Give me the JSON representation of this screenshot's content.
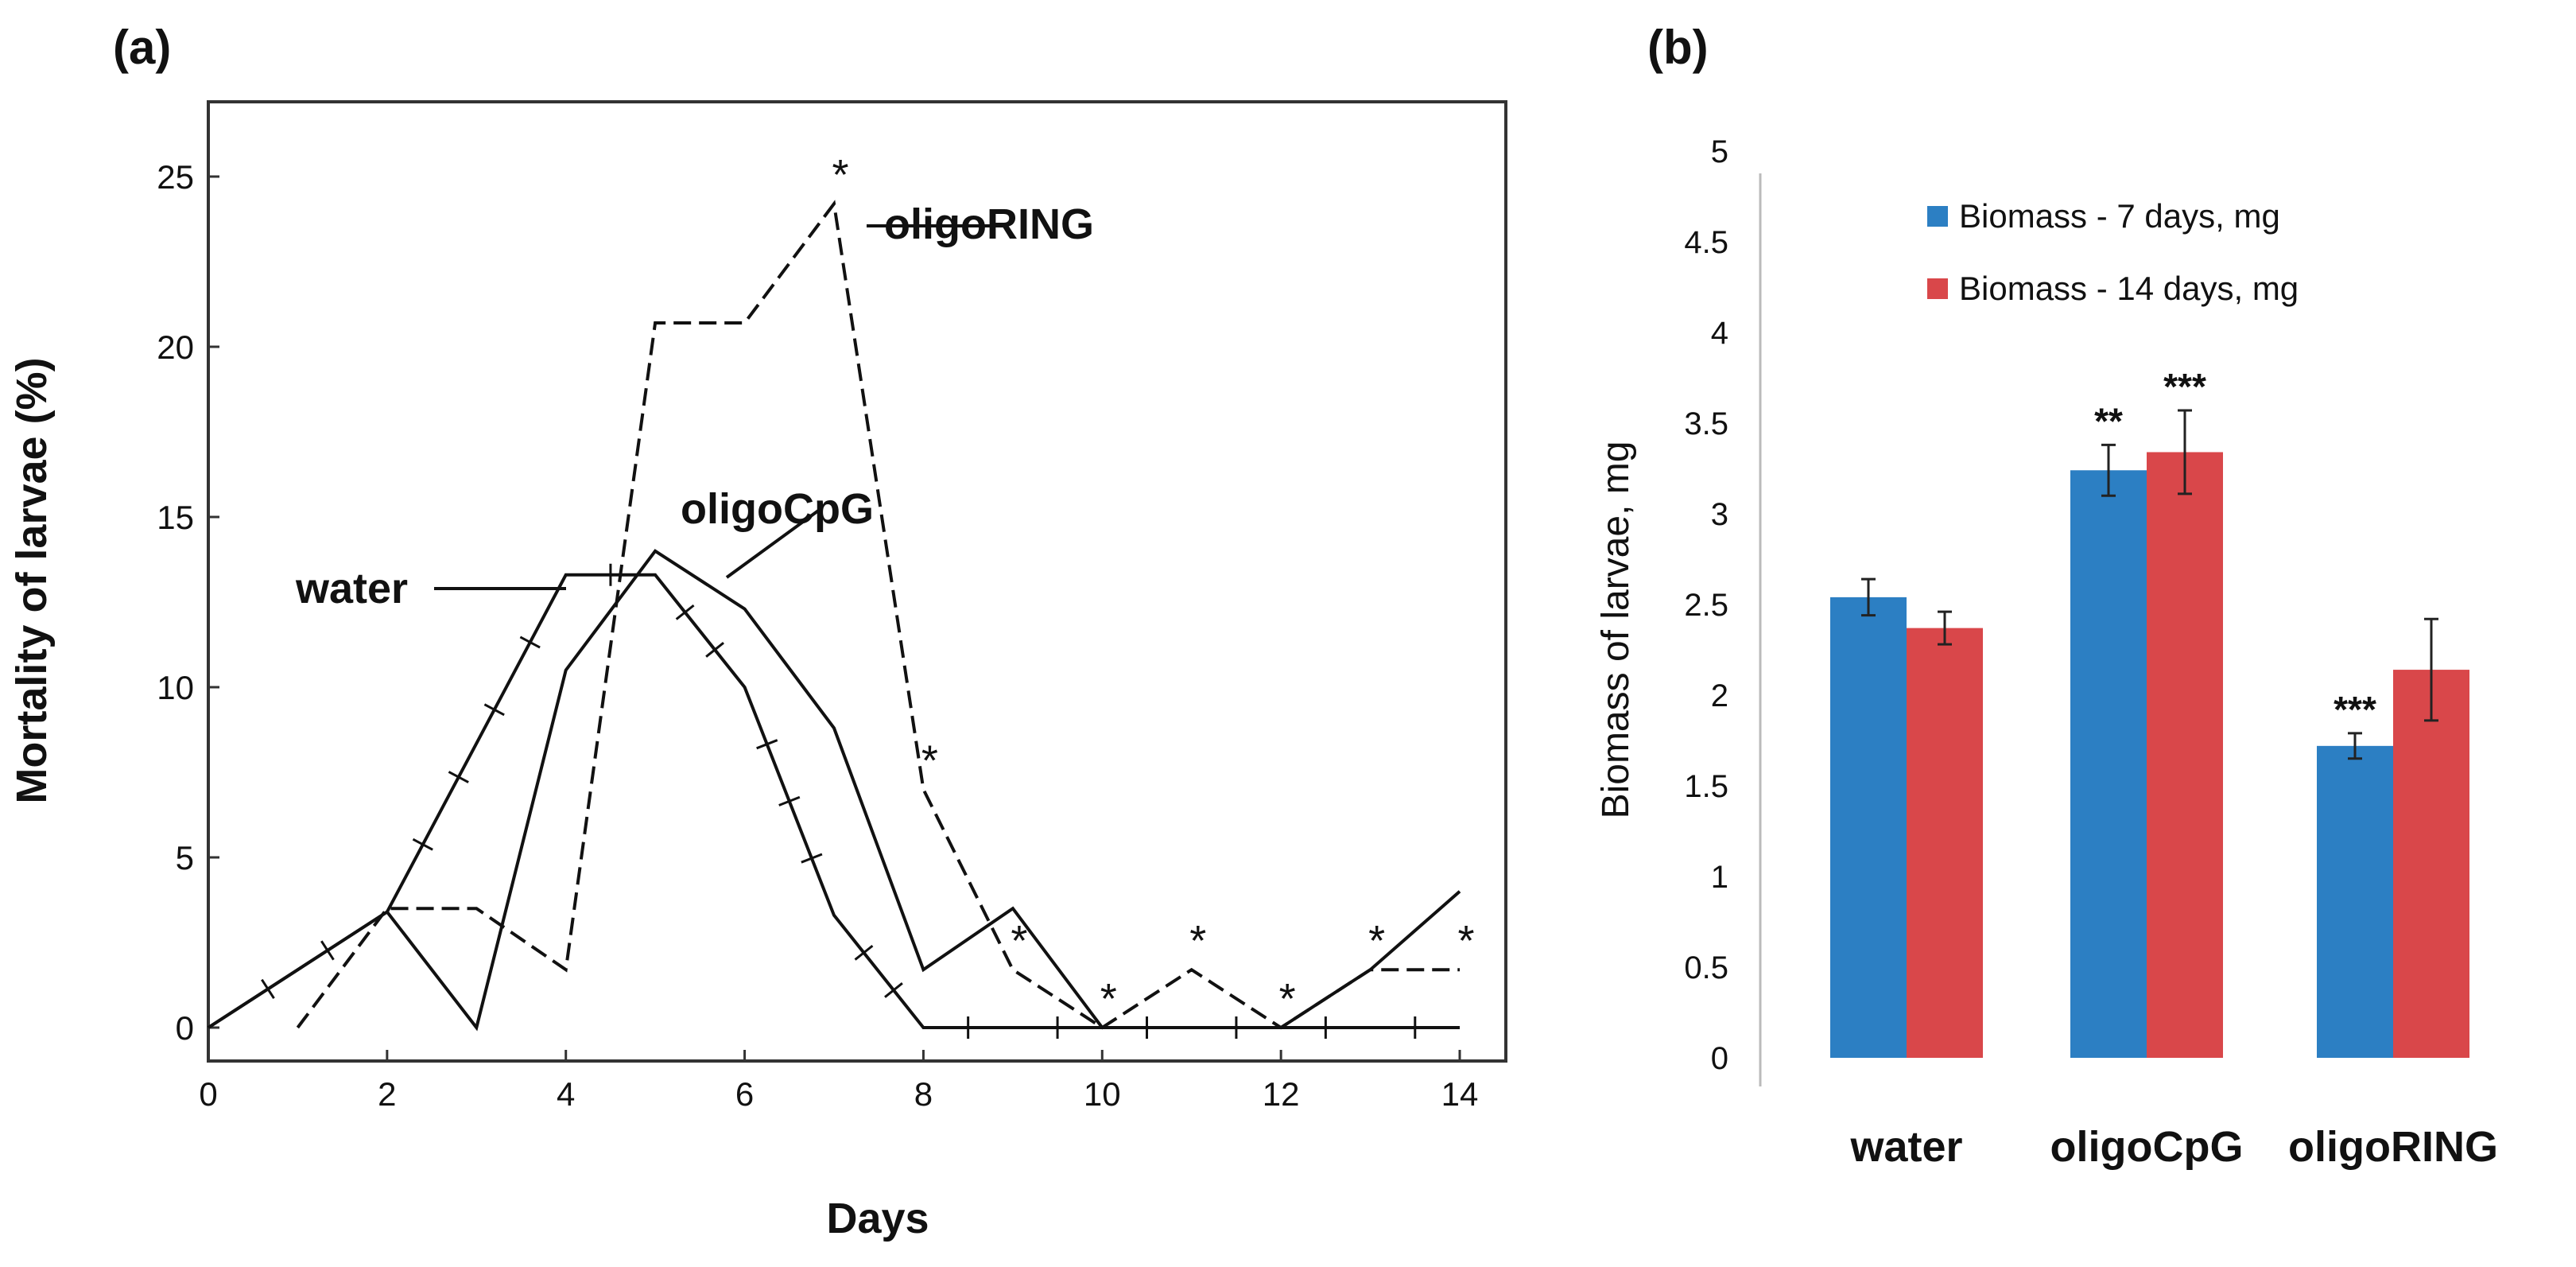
{
  "chart_data": [
    {
      "panel_label": "(a)",
      "type": "line",
      "xlabel": "Days",
      "ylabel": "Mortality of larvae (%)",
      "xlim": [
        0,
        14
      ],
      "ylim": [
        0,
        28
      ],
      "x_ticks": [
        "0",
        "2",
        "4",
        "6",
        "8",
        "10",
        "12",
        "14"
      ],
      "y_ticks": [
        "0",
        "5",
        "10",
        "15",
        "20",
        "25"
      ],
      "series": [
        {
          "name": "water",
          "style": "solid-ticked",
          "x": [
            0,
            2,
            4,
            5,
            6,
            7,
            8,
            9,
            10,
            11,
            12,
            13,
            14
          ],
          "y": [
            0,
            3.4,
            13.3,
            13.3,
            10.0,
            3.3,
            0,
            0,
            0,
            0,
            0,
            0,
            0
          ]
        },
        {
          "name": "oligoCpG",
          "style": "solid",
          "x": [
            0,
            2,
            3,
            4,
            5,
            6,
            7,
            8,
            9,
            10,
            11,
            12,
            13,
            14
          ],
          "y": [
            0,
            3.4,
            0,
            10.5,
            14.0,
            12.3,
            8.8,
            1.7,
            3.5,
            0,
            0,
            0,
            1.7,
            4.0
          ]
        },
        {
          "name": "oligoRING",
          "style": "dashed",
          "x": [
            1,
            2,
            3,
            4,
            5,
            6,
            7,
            8,
            9,
            10,
            11,
            12,
            13,
            14
          ],
          "y": [
            0,
            3.5,
            3.5,
            1.7,
            20.7,
            20.7,
            24.2,
            7.0,
            1.7,
            0,
            1.7,
            0,
            1.7,
            1.7
          ]
        }
      ],
      "annotations": {
        "water": "water",
        "oligoCpG": "oligoCpG",
        "oligoRING": "oligoRING",
        "significance_marker": "*",
        "significance_days": [
          7,
          8,
          9,
          10,
          11,
          12,
          13,
          14
        ]
      }
    },
    {
      "panel_label": "(b)",
      "type": "bar",
      "ylabel": "Biomass of larvae, mg",
      "ylim": [
        0,
        5
      ],
      "y_ticks": [
        "0",
        "0.5",
        "1",
        "1.5",
        "2",
        "2.5",
        "3",
        "3.5",
        "4",
        "4.5",
        "5"
      ],
      "categories": [
        "water",
        "oligoCpG",
        "oligoRING"
      ],
      "series": [
        {
          "name": "Biomass - 7 days, mg",
          "color": "#2c7fc3",
          "values": [
            2.54,
            3.24,
            1.72
          ],
          "errors": [
            0.1,
            0.14,
            0.07
          ],
          "significance": [
            "",
            "**",
            "***"
          ]
        },
        {
          "name": "Biomass - 14 days, mg",
          "color": "#d9474a",
          "values": [
            2.37,
            3.34,
            2.14
          ],
          "errors": [
            0.09,
            0.23,
            0.28
          ],
          "significance": [
            "",
            "***",
            ""
          ]
        }
      ],
      "legend_position": "top-right"
    }
  ]
}
